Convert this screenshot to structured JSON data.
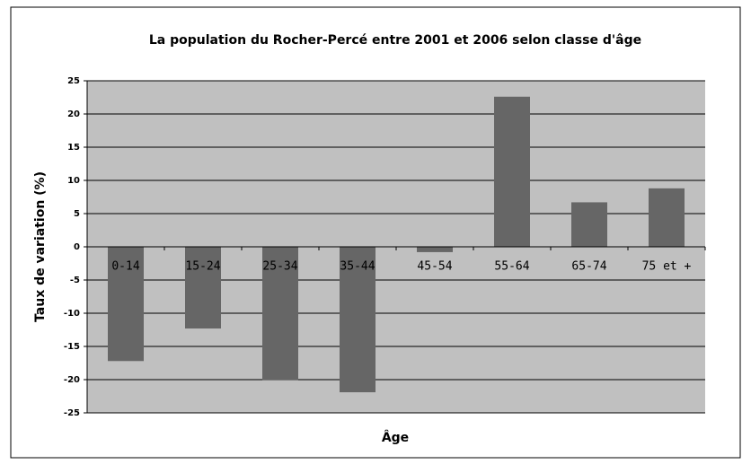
{
  "chart_data": {
    "type": "bar",
    "title": "La population du Rocher-Percé entre 2001 et 2006 selon classe d'âge",
    "x_label": "Âge",
    "y_label": "Taux de variation (%)",
    "categories": [
      "0-14",
      "15-24",
      "25-34",
      "35-44",
      "45-54",
      "55-64",
      "65-74",
      "75 et +"
    ],
    "values": [
      -17.2,
      -12.3,
      -20.1,
      -21.9,
      -0.8,
      22.6,
      6.7,
      8.8
    ],
    "color": "#666666",
    "plot_background": "#c0c0c0",
    "ylim": [
      -25,
      25
    ],
    "yticks": [
      -25,
      -20,
      -15,
      -10,
      -5,
      0,
      5,
      10,
      15,
      20,
      25
    ],
    "grid": true
  }
}
